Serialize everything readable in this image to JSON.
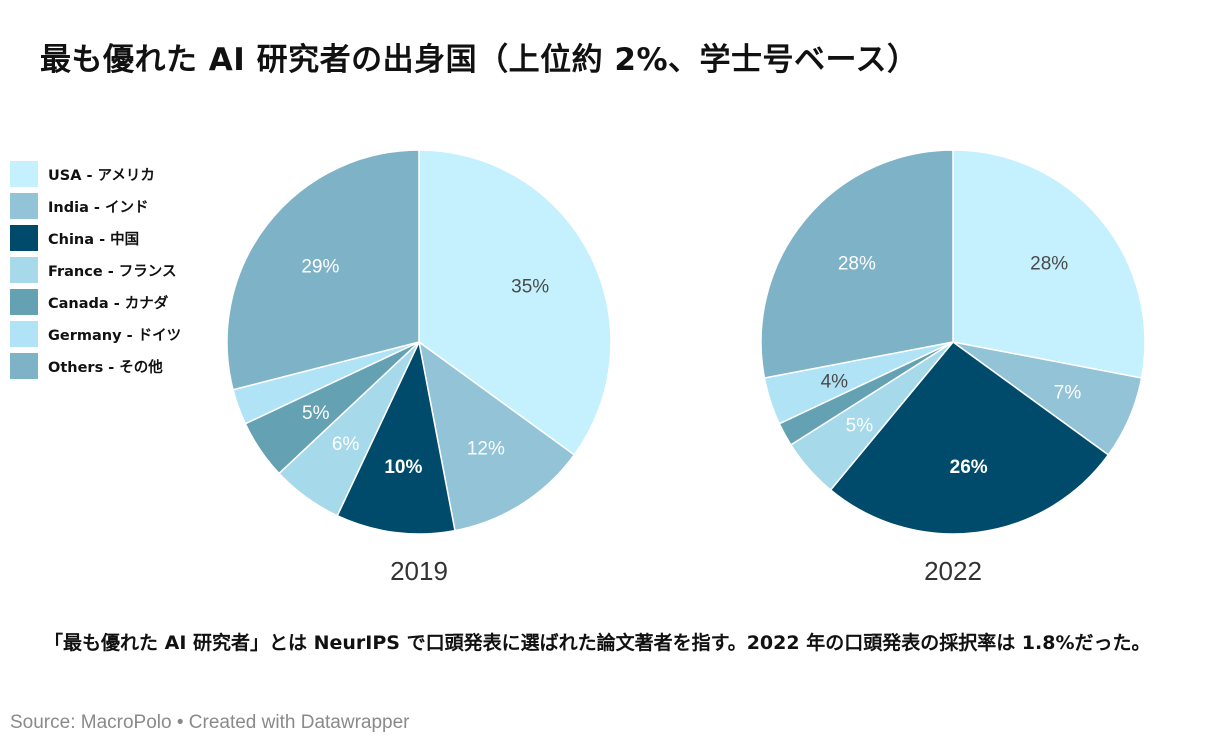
{
  "title": "最も優れた AI 研究者の出身国（上位約 2%、学士号ベース）",
  "note": "「最も優れた AI 研究者」とは NeurIPS で口頭発表に選ばれた論文著者を指す。2022 年の口頭発表の採択率は 1.8%だった。",
  "source": "Source: MacroPolo • Created with Datawrapper",
  "legend": [
    {
      "label": "USA - アメリカ",
      "color": "#c4f1fd"
    },
    {
      "label": "India - インド",
      "color": "#92c3d6"
    },
    {
      "label": "China - 中国",
      "color": "#004b6b"
    },
    {
      "label": "France - フランス",
      "color": "#a6d9ea"
    },
    {
      "label": "Canada - カナダ",
      "color": "#64a1b3"
    },
    {
      "label": "Germany - ドイツ",
      "color": "#b1e3f6"
    },
    {
      "label": "Others - その他",
      "color": "#7eb2c6"
    }
  ],
  "chart_data": [
    {
      "type": "pie",
      "label": "2019",
      "categories": [
        "USA - アメリカ",
        "India - インド",
        "China - 中国",
        "France - フランス",
        "Canada - カナダ",
        "Germany - ドイツ",
        "Others - その他"
      ],
      "values": [
        35,
        12,
        10,
        6,
        5,
        3,
        29
      ],
      "value_labels": [
        "35%",
        "12%",
        "10%",
        "6%",
        "5%",
        "",
        "29%"
      ]
    },
    {
      "type": "pie",
      "label": "2022",
      "categories": [
        "USA - アメリカ",
        "India - インド",
        "China - 中国",
        "France - フランス",
        "Canada - カナダ",
        "Germany - ドイツ",
        "Others - その他"
      ],
      "values": [
        28,
        7,
        26,
        5,
        2,
        4,
        28
      ],
      "value_labels": [
        "28%",
        "7%",
        "26%",
        "5%",
        "",
        "4%",
        "28%"
      ]
    }
  ]
}
